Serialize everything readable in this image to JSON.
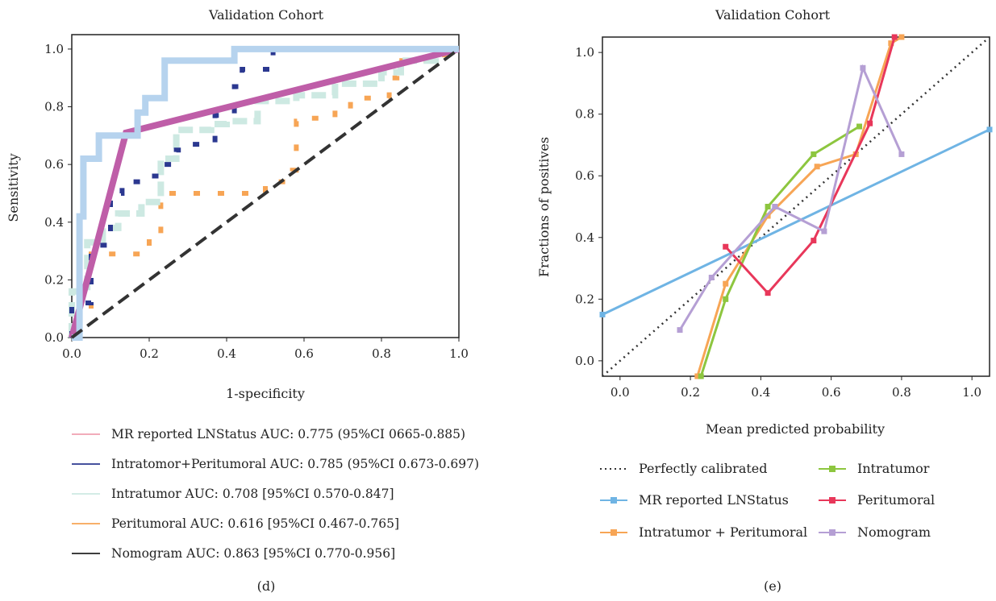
{
  "chart_data": [
    {
      "type": "line",
      "panel_label": "(d)",
      "title": "Validation Cohort",
      "xlabel": "1-specificity",
      "ylabel": "Sensitivity",
      "xlim": [
        0,
        1
      ],
      "ylim": [
        0,
        1.05
      ],
      "xticks": [
        "0.0",
        "0.2",
        "0.4",
        "0.6",
        "0.8",
        "1.0"
      ],
      "yticks": [
        "0.0",
        "0.2",
        "0.4",
        "0.6",
        "0.8",
        "1.0"
      ],
      "legend_position": "below",
      "series": [
        {
          "name": "Peritumoral AUC: 0.616 [95%CI 0.467-0.765]",
          "color": "#f7a555",
          "style": "dashed-square",
          "x": [
            0,
            0,
            0.05,
            0.05,
            0.13,
            0.13,
            0.18,
            0.18,
            0.2,
            0.2,
            0.23,
            0.23,
            0.5,
            0.5,
            0.57,
            0.57,
            0.58,
            0.58,
            0.62,
            0.62,
            0.68,
            0.68,
            0.72,
            0.72,
            0.78,
            0.78,
            0.82,
            0.82,
            0.84,
            0.84,
            0.88,
            0.88,
            0.94,
            0.94,
            1.0,
            1.0
          ],
          "y": [
            0,
            0.1,
            0.1,
            0.29,
            0.29,
            0.29,
            0.29,
            0.3,
            0.3,
            0.35,
            0.35,
            0.5,
            0.5,
            0.54,
            0.54,
            0.58,
            0.58,
            0.75,
            0.75,
            0.76,
            0.76,
            0.79,
            0.79,
            0.83,
            0.83,
            0.83,
            0.83,
            0.9,
            0.9,
            0.96,
            0.96,
            0.96,
            0.96,
            0.98,
            0.98,
            1.0
          ]
        },
        {
          "name": "Intratumor AUC: 0.708 [95%CI 0.570-0.847]",
          "color": "#cde9e2",
          "style": "dashed-thick",
          "x": [
            0,
            0,
            0.04,
            0.04,
            0.08,
            0.08,
            0.12,
            0.12,
            0.18,
            0.18,
            0.23,
            0.23,
            0.27,
            0.27,
            0.36,
            0.36,
            0.4,
            0.4,
            0.48,
            0.48,
            0.58,
            0.58,
            0.68,
            0.68,
            0.8,
            0.8,
            0.85,
            0.85,
            0.94,
            0.94,
            1.0
          ],
          "y": [
            0,
            0.16,
            0.16,
            0.33,
            0.33,
            0.38,
            0.38,
            0.43,
            0.43,
            0.47,
            0.47,
            0.62,
            0.62,
            0.72,
            0.72,
            0.74,
            0.74,
            0.75,
            0.75,
            0.82,
            0.82,
            0.84,
            0.84,
            0.88,
            0.88,
            0.92,
            0.92,
            0.96,
            0.96,
            0.98,
            1.0
          ]
        },
        {
          "name": "Intratomor+Peritumoral AUC: 0.785 (95%CI 0.673-0.697)",
          "color": "#2b3890",
          "style": "dashed-square",
          "x": [
            0,
            0,
            0.05,
            0.05,
            0.1,
            0.1,
            0.13,
            0.13,
            0.2,
            0.2,
            0.23,
            0.23,
            0.27,
            0.27,
            0.31,
            0.31,
            0.37,
            0.37,
            0.42,
            0.42,
            0.44,
            0.44,
            0.52,
            0.52,
            0.58,
            0.58,
            1.0
          ],
          "y": [
            0,
            0.12,
            0.12,
            0.32,
            0.32,
            0.5,
            0.5,
            0.54,
            0.54,
            0.56,
            0.56,
            0.6,
            0.6,
            0.65,
            0.65,
            0.67,
            0.67,
            0.77,
            0.77,
            0.87,
            0.87,
            0.93,
            0.93,
            1.0,
            1.0,
            1.0,
            1.0
          ]
        },
        {
          "name": "MR reported LNStatus AUC: 0.775 (95%CI 0665-0.885)",
          "color": "#bf5ea8",
          "style": "solid-thick",
          "x": [
            0,
            0.05,
            0.14,
            1.0
          ],
          "y": [
            0,
            0.25,
            0.71,
            1.0
          ]
        },
        {
          "name": "Nomogram AUC: 0.863 [95%CI 0.770-0.956]",
          "color": "#b6d3ee",
          "style": "solid-thick",
          "x": [
            0,
            0.02,
            0.02,
            0.03,
            0.03,
            0.07,
            0.07,
            0.17,
            0.17,
            0.19,
            0.19,
            0.24,
            0.24,
            0.42,
            0.42,
            0.63,
            0.63,
            1.0
          ],
          "y": [
            0,
            0,
            0.42,
            0.42,
            0.62,
            0.62,
            0.7,
            0.7,
            0.78,
            0.78,
            0.83,
            0.83,
            0.96,
            0.96,
            1.0,
            1.0,
            1.0,
            1.0
          ]
        },
        {
          "name": "",
          "color": "#333333",
          "style": "reference-dashed",
          "x": [
            0,
            1
          ],
          "y": [
            0,
            1
          ]
        }
      ],
      "legend": [
        {
          "label": "MR reported LNStatus AUC: 0.775 (95%CI 0665-0.885)",
          "color": "#f0a0b0"
        },
        {
          "label": "Intratomor+Peritumoral AUC: 0.785 (95%CI 0.673-0.697)",
          "color": "#2b3890"
        },
        {
          "label": "Intratumor AUC: 0.708 [95%CI 0.570-0.847]",
          "color": "#cde9e2"
        },
        {
          "label": "Peritumoral AUC: 0.616 [95%CI 0.467-0.765]",
          "color": "#f7a555"
        },
        {
          "label": "Nomogram AUC: 0.863 [95%CI 0.770-0.956]",
          "color": "#222222"
        }
      ]
    },
    {
      "type": "line",
      "panel_label": "(e)",
      "title": "Validation Cohort",
      "xlabel": "Mean predicted probability",
      "ylabel": "Fractions of positives",
      "xlim": [
        -0.05,
        1.05
      ],
      "ylim": [
        -0.05,
        1.05
      ],
      "xticks": [
        "0.0",
        "0.2",
        "0.4",
        "0.6",
        "0.8",
        "1.0"
      ],
      "yticks": [
        "0.0",
        "0.2",
        "0.4",
        "0.6",
        "0.8",
        "1.0"
      ],
      "legend_position": "below",
      "series": [
        {
          "name": "Perfectly calibrated",
          "color": "#333333",
          "style": "dotted",
          "x": [
            -0.05,
            1.05
          ],
          "y": [
            -0.05,
            1.05
          ]
        },
        {
          "name": "MR reported LNStatus",
          "color": "#6fb4e4",
          "style": "line-square",
          "x": [
            -0.05,
            1.05
          ],
          "y": [
            0.15,
            0.75
          ]
        },
        {
          "name": "Intratumor + Peritumoral",
          "color": "#f7a555",
          "style": "line-square",
          "x": [
            0.22,
            0.3,
            0.42,
            0.56,
            0.67,
            0.77,
            0.8
          ],
          "y": [
            -0.05,
            0.25,
            0.47,
            0.63,
            0.67,
            1.03,
            1.05
          ]
        },
        {
          "name": "Intratumor",
          "color": "#8dc63f",
          "style": "line-square",
          "x": [
            0.23,
            0.3,
            0.42,
            0.55,
            0.68
          ],
          "y": [
            -0.05,
            0.2,
            0.5,
            0.67,
            0.76
          ]
        },
        {
          "name": "Peritumoral",
          "color": "#e8375a",
          "style": "line-square",
          "x": [
            0.3,
            0.42,
            0.55,
            0.71,
            0.78
          ],
          "y": [
            0.37,
            0.22,
            0.39,
            0.77,
            1.05
          ]
        },
        {
          "name": "Nomogram",
          "color": "#b59fd4",
          "style": "line-square",
          "x": [
            0.17,
            0.26,
            0.44,
            0.58,
            0.69,
            0.8
          ],
          "y": [
            0.1,
            0.27,
            0.5,
            0.42,
            0.95,
            0.67
          ]
        }
      ],
      "legend": [
        {
          "label": "Perfectly calibrated",
          "color": "#333333",
          "style": "dotted"
        },
        {
          "label": "Intratumor",
          "color": "#8dc63f",
          "style": "line-square"
        },
        {
          "label": "MR reported LNStatus",
          "color": "#6fb4e4",
          "style": "line-square"
        },
        {
          "label": "Peritumoral",
          "color": "#e8375a",
          "style": "line-square"
        },
        {
          "label": "Intratumor + Peritumoral",
          "color": "#f7a555",
          "style": "line-square"
        },
        {
          "label": "Nomogram",
          "color": "#b59fd4",
          "style": "line-square"
        }
      ]
    }
  ]
}
